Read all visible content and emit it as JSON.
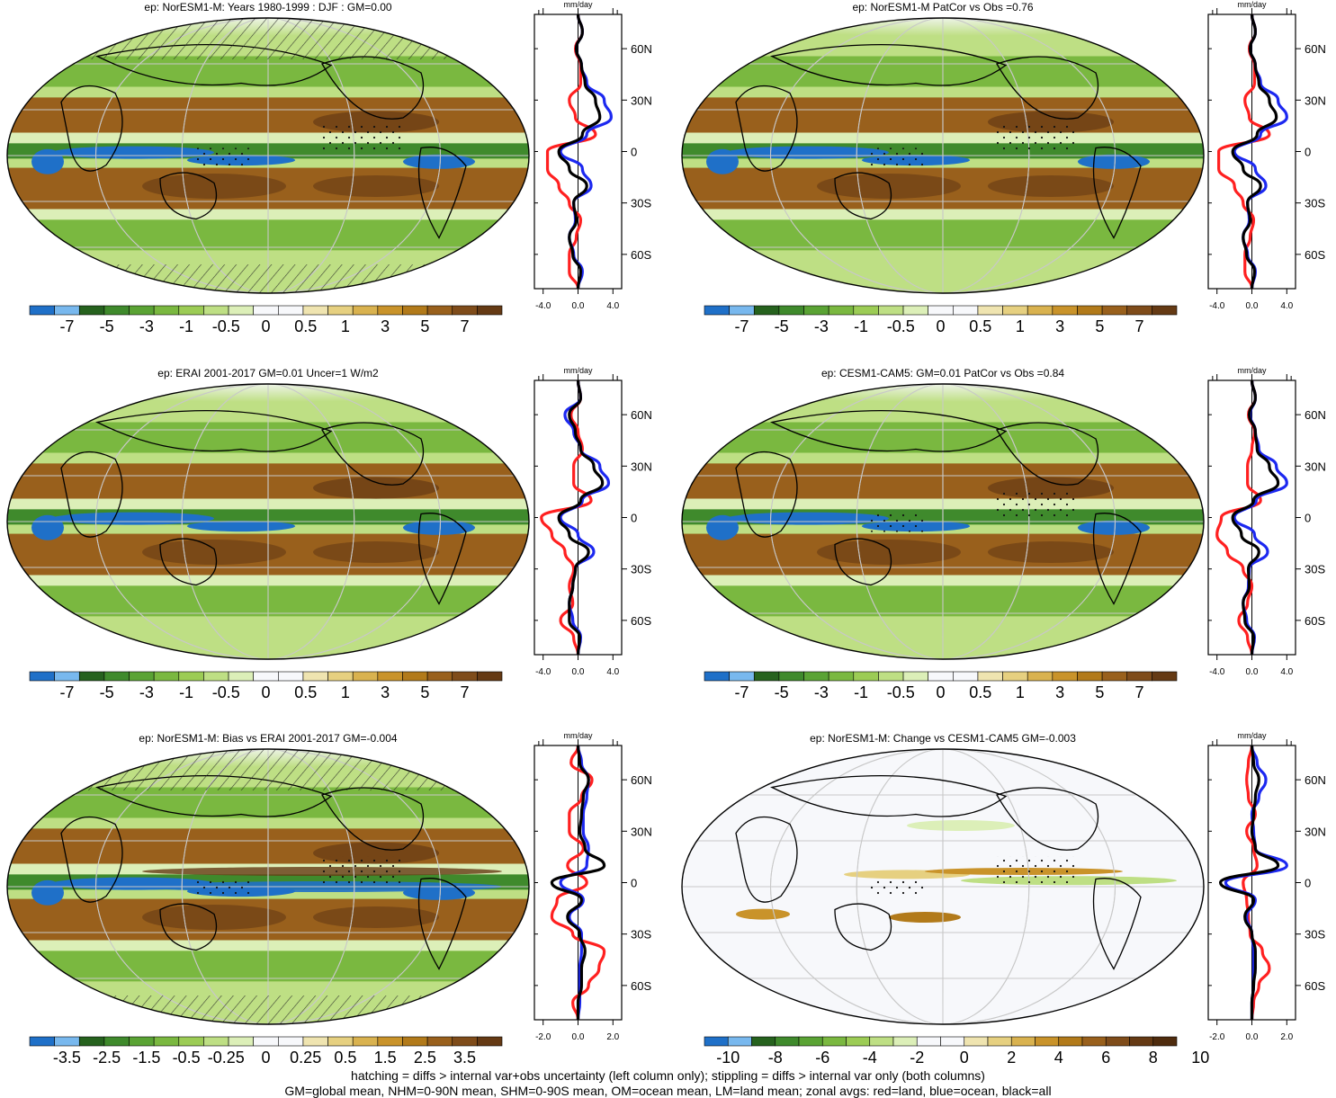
{
  "figure": {
    "footer_lines": [
      "hatching = diffs > internal var+obs uncertainty (left column only); stippling = diffs > internal var only (both columns)",
      "GM=global mean, NHM=0-90N mean, SHM=0-90S mean, OM=ocean mean, LM=land mean; zonal avgs: red=land, blue=ocean, black=all"
    ],
    "series_colors": {
      "land": "#ff2020",
      "ocean": "#1c28f0",
      "all": "#000000"
    },
    "colors_main": [
      "#1f70c8",
      "#78b8ee",
      "#26621e",
      "#3f8a2c",
      "#5aa334",
      "#7ab840",
      "#9ccc55",
      "#bedf84",
      "#dcefb8",
      "#f7f8fb",
      "#f7f8fb",
      "#efe4b0",
      "#e6d080",
      "#d9b24f",
      "#c9932a",
      "#b27a1a",
      "#99601c",
      "#7f4c1a",
      "#653a14"
    ],
    "colors_change": [
      "#1f70c8",
      "#78b8ee",
      "#26621e",
      "#3f8a2c",
      "#5aa334",
      "#7ab840",
      "#9ccc55",
      "#bedf84",
      "#dcefb8",
      "#f7f8fb",
      "#f7f8fb",
      "#efe4b0",
      "#e6d080",
      "#d9b24f",
      "#c9932a",
      "#b27a1a",
      "#99601c",
      "#7f4c1a",
      "#653a14",
      "#4f2c0e"
    ]
  },
  "chart_data": [
    {
      "type": "heatmap",
      "title": "ep: NorESM1-M: Years 1980-1999 : DJF : GM=0.00",
      "colorbar_labels": [
        "-7",
        "-5",
        "-3",
        "-1",
        "-0.5",
        "0",
        "0.5",
        "1",
        "3",
        "5",
        "7"
      ],
      "hatching": true,
      "stippling": true,
      "zonal": {
        "unit_label": "mm/day",
        "x_ticks": [
          "-4.0",
          "0.0",
          "4.0"
        ],
        "xlim": [
          -5,
          5
        ],
        "y_ticks": [
          "60N",
          "30N",
          "0",
          "30S",
          "60S"
        ],
        "ylim": [
          -80,
          80
        ],
        "lat": [
          80,
          70,
          60,
          50,
          40,
          30,
          20,
          10,
          0,
          -10,
          -20,
          -30,
          -40,
          -50,
          -60,
          -70,
          -80
        ],
        "series": [
          {
            "name": "land",
            "values": [
              0,
              0.5,
              -0.3,
              0.3,
              0.3,
              -1.0,
              -0.3,
              2.0,
              -3.5,
              -3.5,
              -2.2,
              -1.0,
              0.3,
              -0.2,
              -1.0,
              -1.0,
              0
            ]
          },
          {
            "name": "ocean",
            "values": [
              0,
              0.5,
              -0.2,
              0.4,
              1.0,
              3.0,
              3.8,
              1.0,
              -2.0,
              0.5,
              1.5,
              -0.5,
              -0.3,
              -1.0,
              -0.5,
              0.5,
              0
            ]
          },
          {
            "name": "all",
            "values": [
              0,
              0.5,
              -0.2,
              0.4,
              0.8,
              2.0,
              2.5,
              0.5,
              -2.2,
              -1.0,
              1.0,
              -0.5,
              -0.2,
              -1.0,
              -0.6,
              0.3,
              0
            ]
          }
        ]
      }
    },
    {
      "type": "heatmap",
      "title": "ep: NorESM1-M PatCor vs Obs =0.76",
      "colorbar_labels": [
        "-7",
        "-5",
        "-3",
        "-1",
        "-0.5",
        "0",
        "0.5",
        "1",
        "3",
        "5",
        "7"
      ],
      "hatching": false,
      "stippling": true,
      "zonal": {
        "unit_label": "mm/day",
        "x_ticks": [
          "-4.0",
          "0.0",
          "4.0"
        ],
        "xlim": [
          -5,
          5
        ],
        "y_ticks": [
          "60N",
          "30N",
          "0",
          "30S",
          "60S"
        ],
        "ylim": [
          -80,
          80
        ],
        "lat": [
          80,
          70,
          60,
          50,
          40,
          30,
          20,
          10,
          0,
          -10,
          -20,
          -30,
          -40,
          -50,
          -60,
          -70,
          -80
        ],
        "series": [
          {
            "name": "land",
            "values": [
              0,
              0.4,
              -0.3,
              0.3,
              0.3,
              -0.8,
              -0.3,
              2.0,
              -3.8,
              -3.8,
              -2.0,
              -1.0,
              0.2,
              -0.2,
              -0.8,
              -0.8,
              0
            ]
          },
          {
            "name": "ocean",
            "values": [
              0,
              0.4,
              -0.2,
              0.4,
              1.0,
              3.0,
              4.0,
              1.0,
              -2.0,
              0.4,
              1.6,
              -0.5,
              -0.3,
              -1.0,
              -0.5,
              0.4,
              0
            ]
          },
          {
            "name": "all",
            "values": [
              0,
              0.4,
              -0.2,
              0.4,
              0.8,
              2.0,
              2.8,
              0.6,
              -2.2,
              -1.0,
              1.0,
              -0.5,
              -0.2,
              -1.0,
              -0.6,
              0.3,
              0
            ]
          }
        ]
      }
    },
    {
      "type": "heatmap",
      "title": "ep: ERAI 2001-2017 GM=0.01 Uncer=1 W/m2",
      "colorbar_labels": [
        "-7",
        "-5",
        "-3",
        "-1",
        "-0.5",
        "0",
        "0.5",
        "1",
        "3",
        "5",
        "7"
      ],
      "hatching": false,
      "stippling": false,
      "zonal": {
        "unit_label": "mm/day",
        "x_ticks": [
          "-4.0",
          "0.0",
          "4.0"
        ],
        "xlim": [
          -5,
          5
        ],
        "y_ticks": [
          "60N",
          "30N",
          "0",
          "30S",
          "60S"
        ],
        "ylim": [
          -80,
          80
        ],
        "lat": [
          80,
          70,
          60,
          50,
          40,
          30,
          20,
          10,
          0,
          -10,
          -20,
          -30,
          -40,
          -50,
          -60,
          -70,
          -80
        ],
        "series": [
          {
            "name": "land",
            "values": [
              0,
              0.3,
              -0.8,
              0.0,
              0.5,
              -0.5,
              -0.5,
              1.5,
              -4.2,
              -3.0,
              -1.5,
              -0.5,
              -1.0,
              -0.6,
              -2.0,
              -0.5,
              0
            ]
          },
          {
            "name": "ocean",
            "values": [
              0,
              0.3,
              -1.5,
              -0.5,
              0.3,
              2.5,
              3.5,
              0.5,
              -2.0,
              0.0,
              1.8,
              -0.3,
              -0.6,
              -1.0,
              -0.6,
              0.3,
              0
            ]
          },
          {
            "name": "all",
            "values": [
              0,
              0.3,
              -1.0,
              -0.3,
              0.3,
              1.8,
              2.8,
              0.3,
              -2.2,
              -1.0,
              1.2,
              -0.3,
              -0.6,
              -1.0,
              -1.0,
              0.2,
              0
            ]
          }
        ]
      }
    },
    {
      "type": "heatmap",
      "title": "ep: CESM1-CAM5: GM=0.01 PatCor vs Obs =0.84",
      "colorbar_labels": [
        "-7",
        "-5",
        "-3",
        "-1",
        "-0.5",
        "0",
        "0.5",
        "1",
        "3",
        "5",
        "7"
      ],
      "hatching": false,
      "stippling": true,
      "zonal": {
        "unit_label": "mm/day",
        "x_ticks": [
          "-4.0",
          "0.0",
          "4.0"
        ],
        "xlim": [
          -5,
          5
        ],
        "y_ticks": [
          "60N",
          "30N",
          "0",
          "30S",
          "60S"
        ],
        "ylim": [
          -80,
          80
        ],
        "lat": [
          80,
          70,
          60,
          50,
          40,
          30,
          20,
          10,
          0,
          -10,
          -20,
          -30,
          -40,
          -50,
          -60,
          -70,
          -80
        ],
        "series": [
          {
            "name": "land",
            "values": [
              0,
              0.4,
              -0.4,
              0.3,
              0.0,
              -0.5,
              -0.5,
              1.0,
              -3.5,
              -4.0,
              -2.8,
              -1.0,
              0.0,
              -0.5,
              -1.5,
              -0.5,
              0
            ]
          },
          {
            "name": "ocean",
            "values": [
              0,
              0.4,
              -0.2,
              0.4,
              0.8,
              2.8,
              4.0,
              0.5,
              -2.0,
              0.3,
              1.8,
              -0.3,
              -0.4,
              -1.0,
              -0.6,
              0.3,
              0
            ]
          },
          {
            "name": "all",
            "values": [
              0,
              0.4,
              -0.3,
              0.4,
              0.6,
              2.0,
              3.0,
              0.2,
              -2.2,
              -1.2,
              0.8,
              -0.4,
              -0.3,
              -1.0,
              -0.8,
              0.2,
              0
            ]
          }
        ]
      }
    },
    {
      "type": "heatmap",
      "title": "ep: NorESM1-M: Bias vs ERAI 2001-2017 GM=-0.004",
      "colorbar_labels": [
        "-3.5",
        "-2.5",
        "-1.5",
        "-0.5",
        "-0.25",
        "0",
        "0.25",
        "0.5",
        "1.5",
        "2.5",
        "3.5"
      ],
      "hatching": true,
      "stippling": true,
      "zonal": {
        "unit_label": "mm/day",
        "x_ticks": [
          "-2.0",
          "0.0",
          "2.0"
        ],
        "xlim": [
          -2.5,
          2.5
        ],
        "y_ticks": [
          "60N",
          "30N",
          "0",
          "30S",
          "60S"
        ],
        "ylim": [
          -80,
          80
        ],
        "lat": [
          80,
          70,
          60,
          50,
          40,
          30,
          20,
          10,
          0,
          -10,
          -20,
          -30,
          -40,
          -50,
          -60,
          -70,
          -80
        ],
        "series": [
          {
            "name": "land",
            "values": [
              0,
              -0.4,
              0.8,
              0.2,
              -0.5,
              -0.5,
              0.3,
              -0.6,
              0.5,
              -1.2,
              -1.5,
              -0.3,
              1.5,
              1.2,
              0.6,
              -0.3,
              0
            ]
          },
          {
            "name": "ocean",
            "values": [
              0,
              0.2,
              0.6,
              0.5,
              0.3,
              0.3,
              0.6,
              0.5,
              -1.0,
              0.3,
              -0.5,
              0.2,
              0.2,
              0.1,
              0.1,
              0.1,
              0
            ]
          },
          {
            "name": "all",
            "values": [
              0,
              0.1,
              0.6,
              0.3,
              0.2,
              0.1,
              0.4,
              1.5,
              -1.5,
              0.2,
              -0.6,
              0.1,
              0.4,
              0.2,
              0.2,
              0.0,
              0
            ]
          }
        ]
      }
    },
    {
      "type": "heatmap",
      "title": "ep: NorESM1-M: Change vs CESM1-CAM5 GM=-0.003",
      "colorbar_labels": [
        "-10",
        "-8",
        "-6",
        "-4",
        "-2",
        "0",
        "2",
        "4",
        "6",
        "8",
        "10"
      ],
      "hatching": false,
      "stippling": true,
      "zonal": {
        "unit_label": "mm/day",
        "x_ticks": [
          "-2.0",
          "0.0",
          "2.0"
        ],
        "xlim": [
          -2.5,
          2.5
        ],
        "y_ticks": [
          "60N",
          "30N",
          "0",
          "30S",
          "60S"
        ],
        "ylim": [
          -80,
          80
        ],
        "lat": [
          80,
          70,
          60,
          50,
          40,
          30,
          20,
          10,
          0,
          -10,
          -20,
          -30,
          -40,
          -50,
          -60,
          -70,
          -80
        ],
        "series": [
          {
            "name": "land",
            "values": [
              0,
              -0.2,
              -0.3,
              -0.2,
              0.2,
              -0.3,
              0.1,
              0.3,
              -0.5,
              -0.3,
              -0.2,
              -0.1,
              0.6,
              1.0,
              0.4,
              0.1,
              0
            ]
          },
          {
            "name": "ocean",
            "values": [
              0,
              0.3,
              0.8,
              0.4,
              0.0,
              0.1,
              0.2,
              2.0,
              -1.5,
              0.2,
              -0.3,
              0.0,
              0.1,
              0.1,
              0.1,
              0.0,
              0
            ]
          },
          {
            "name": "all",
            "values": [
              0,
              0.1,
              0.4,
              0.2,
              0.1,
              0.0,
              0.2,
              1.5,
              -1.8,
              0.1,
              -0.4,
              0.0,
              0.2,
              0.2,
              0.1,
              0.0,
              0
            ]
          }
        ]
      }
    }
  ]
}
